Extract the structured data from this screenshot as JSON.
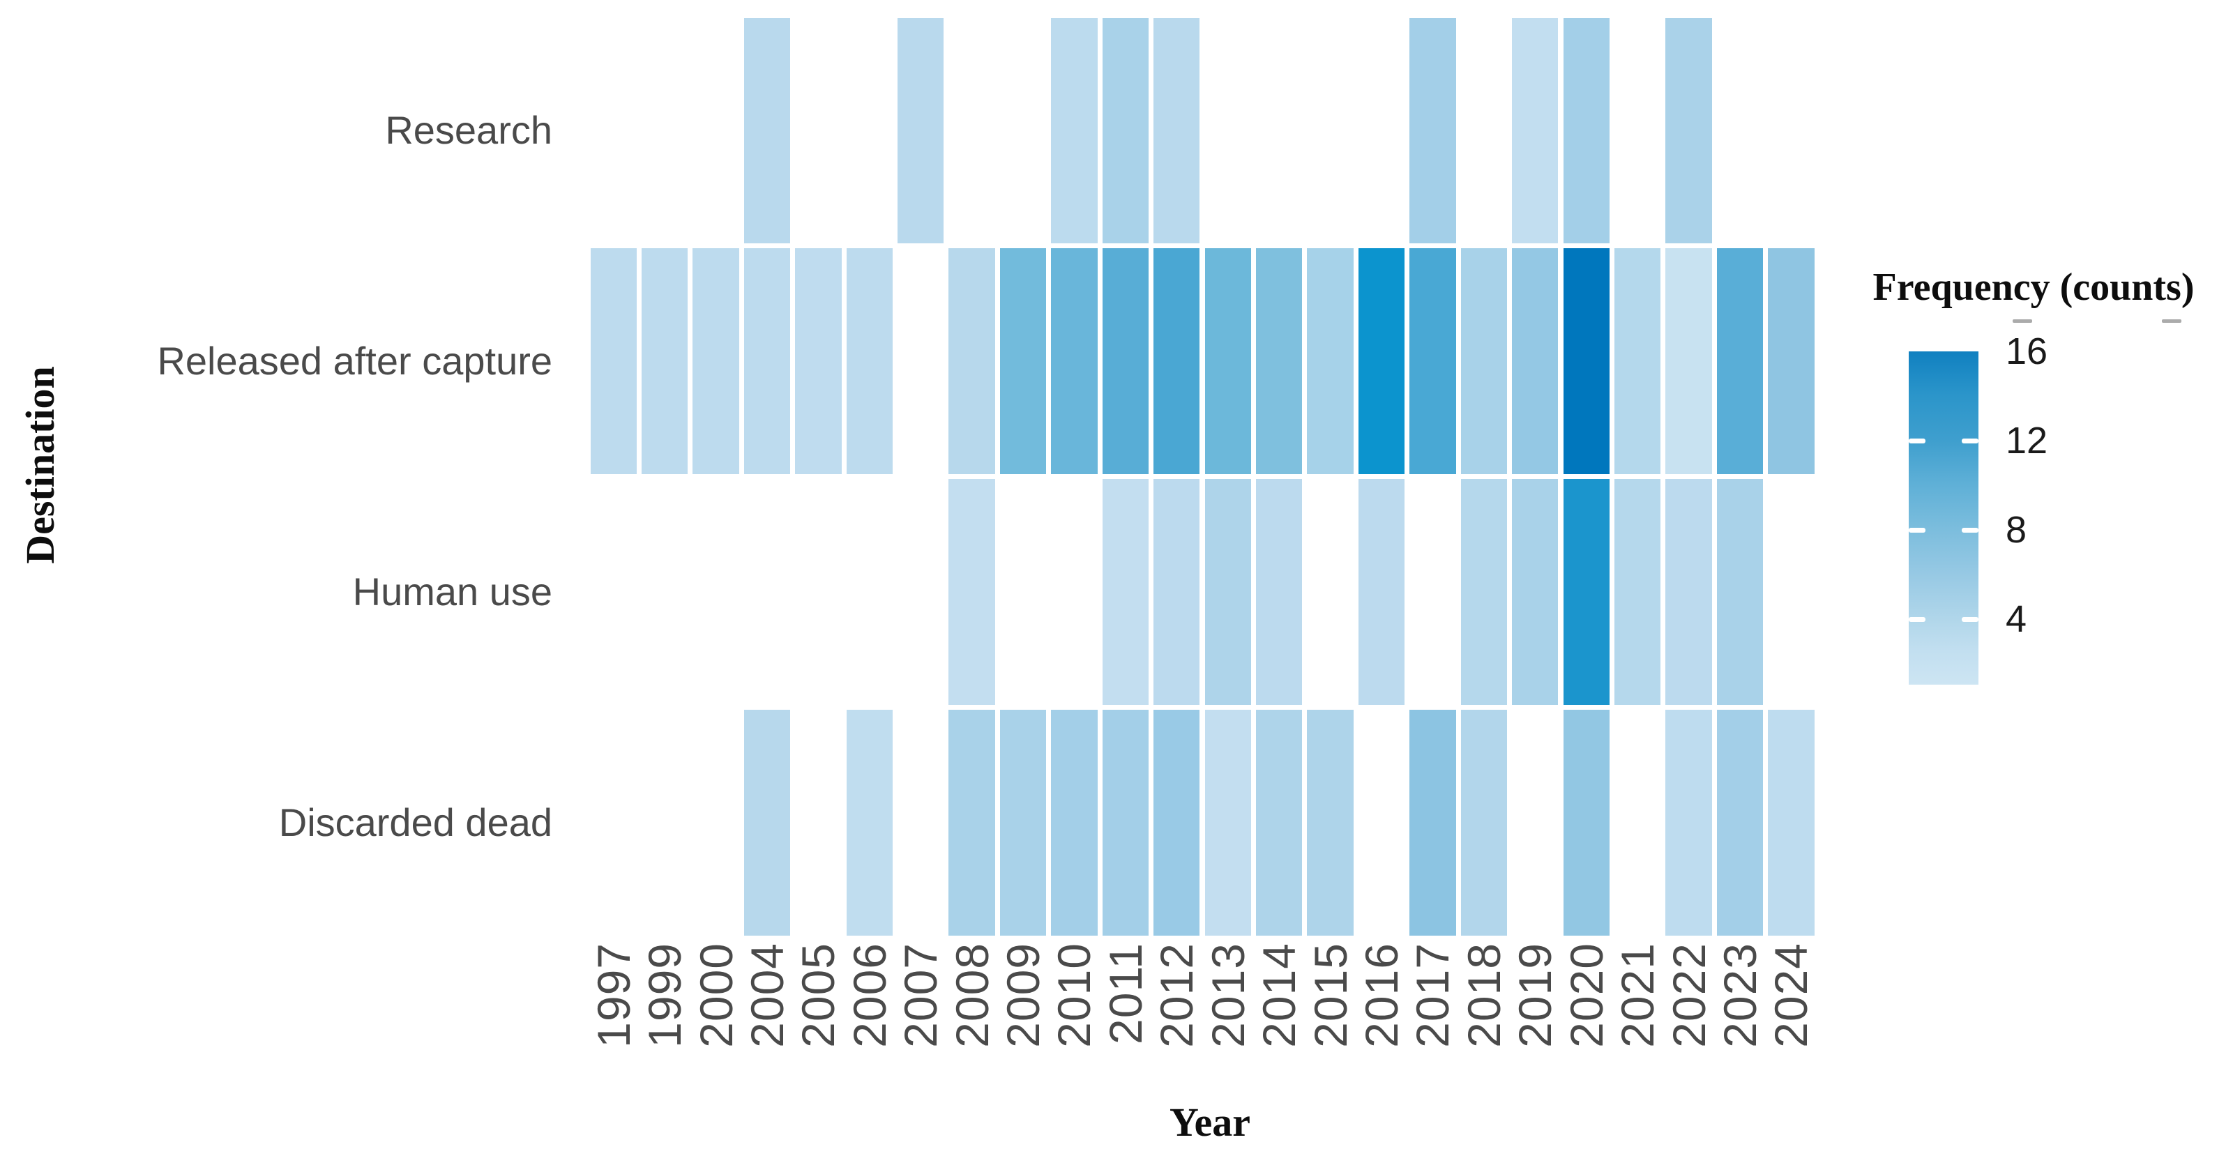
{
  "chart_data": {
    "type": "heatmap",
    "title": "",
    "xlabel": "Year",
    "ylabel": "Destination",
    "legend_title": "Frequency (counts)",
    "legend_ticks": [
      "16",
      "12",
      "8",
      "4"
    ],
    "legend_range": [
      1,
      17
    ],
    "legend_position": "right",
    "grid": "off",
    "colors": {
      "low": "#cde5f3",
      "high": "#0077bd",
      "background": "#ffffff",
      "cell_border": "#ffffff",
      "label_gray": "#4a4a4a"
    },
    "x_categories": [
      "1997",
      "1999",
      "2000",
      "2004",
      "2005",
      "2006",
      "2007",
      "2008",
      "2009",
      "2010",
      "2011",
      "2012",
      "2013",
      "2014",
      "2015",
      "2016",
      "2017",
      "2018",
      "2019",
      "2020",
      "2021",
      "2022",
      "2023",
      "2024"
    ],
    "y_categories": [
      "Research",
      "Released after capture",
      "Human use",
      "Discarded dead"
    ],
    "rows": [
      {
        "label": "Research",
        "cells": [
          {
            "year": "2004",
            "value": 3,
            "color": "#b9d9ed"
          },
          {
            "year": "2007",
            "value": 3,
            "color": "#b9d9ed"
          },
          {
            "year": "2010",
            "value": 3,
            "color": "#bcdbee"
          },
          {
            "year": "2011",
            "value": 5,
            "color": "#a9d2e9"
          },
          {
            "year": "2012",
            "value": 3,
            "color": "#b9d9ed"
          },
          {
            "year": "2017",
            "value": 5,
            "color": "#a3cfe8"
          },
          {
            "year": "2019",
            "value": 2,
            "color": "#c2def0"
          },
          {
            "year": "2020",
            "value": 5,
            "color": "#a3cfe8"
          },
          {
            "year": "2022",
            "value": 5,
            "color": "#aad2e9"
          }
        ]
      },
      {
        "label": "Released after capture",
        "cells": [
          {
            "year": "1997",
            "value": 3,
            "color": "#bddbee"
          },
          {
            "year": "1999",
            "value": 3,
            "color": "#bddbee"
          },
          {
            "year": "2000",
            "value": 3,
            "color": "#bddbee"
          },
          {
            "year": "2004",
            "value": 3,
            "color": "#bddbee"
          },
          {
            "year": "2005",
            "value": 3,
            "color": "#bfdcef"
          },
          {
            "year": "2006",
            "value": 3,
            "color": "#bddbee"
          },
          {
            "year": "2008",
            "value": 4,
            "color": "#b7d8ec"
          },
          {
            "year": "2009",
            "value": 7,
            "color": "#72bbdc"
          },
          {
            "year": "2010",
            "value": 8,
            "color": "#69b6da"
          },
          {
            "year": "2011",
            "value": 9,
            "color": "#58add6"
          },
          {
            "year": "2012",
            "value": 11,
            "color": "#4aa7d3"
          },
          {
            "year": "2013",
            "value": 8,
            "color": "#6cb8da"
          },
          {
            "year": "2014",
            "value": 7,
            "color": "#7fc0de"
          },
          {
            "year": "2015",
            "value": 5,
            "color": "#a6d2e9"
          },
          {
            "year": "2016",
            "value": 14,
            "color": "#0c94ce"
          },
          {
            "year": "2017",
            "value": 11,
            "color": "#49a8d4"
          },
          {
            "year": "2018",
            "value": 5,
            "color": "#a8d2e9"
          },
          {
            "year": "2019",
            "value": 6,
            "color": "#94c8e4"
          },
          {
            "year": "2020",
            "value": 17,
            "color": "#0077bd"
          },
          {
            "year": "2021",
            "value": 4,
            "color": "#b4d8ec"
          },
          {
            "year": "2022",
            "value": 2,
            "color": "#c8e2f1"
          },
          {
            "year": "2023",
            "value": 10,
            "color": "#59aed7"
          },
          {
            "year": "2024",
            "value": 6,
            "color": "#8fc5e2"
          }
        ]
      },
      {
        "label": "Human use",
        "cells": [
          {
            "year": "2008",
            "value": 2,
            "color": "#c3def0"
          },
          {
            "year": "2011",
            "value": 2,
            "color": "#c3def0"
          },
          {
            "year": "2012",
            "value": 3,
            "color": "#bcdaee"
          },
          {
            "year": "2013",
            "value": 5,
            "color": "#aed4ea"
          },
          {
            "year": "2014",
            "value": 3,
            "color": "#bcdaee"
          },
          {
            "year": "2016",
            "value": 3,
            "color": "#bcdaee"
          },
          {
            "year": "2018",
            "value": 4,
            "color": "#b5d8ec"
          },
          {
            "year": "2019",
            "value": 5,
            "color": "#a9d2e9"
          },
          {
            "year": "2020",
            "value": 13,
            "color": "#1b95cd"
          },
          {
            "year": "2021",
            "value": 4,
            "color": "#b5d8ec"
          },
          {
            "year": "2022",
            "value": 3,
            "color": "#bcdaee"
          },
          {
            "year": "2023",
            "value": 5,
            "color": "#a9d2e9"
          }
        ]
      },
      {
        "label": "Discarded dead",
        "cells": [
          {
            "year": "2004",
            "value": 4,
            "color": "#b7d8ec"
          },
          {
            "year": "2006",
            "value": 2,
            "color": "#c0ddef"
          },
          {
            "year": "2008",
            "value": 5,
            "color": "#a9d2e9"
          },
          {
            "year": "2009",
            "value": 5,
            "color": "#a9d2e9"
          },
          {
            "year": "2010",
            "value": 5,
            "color": "#a3cfe8"
          },
          {
            "year": "2011",
            "value": 5,
            "color": "#a3cfe8"
          },
          {
            "year": "2012",
            "value": 6,
            "color": "#99cae6"
          },
          {
            "year": "2013",
            "value": 2,
            "color": "#c3def0"
          },
          {
            "year": "2014",
            "value": 5,
            "color": "#aed4ea"
          },
          {
            "year": "2015",
            "value": 5,
            "color": "#aed4ea"
          },
          {
            "year": "2017",
            "value": 7,
            "color": "#8cc4e2"
          },
          {
            "year": "2018",
            "value": 4,
            "color": "#b2d6eb"
          },
          {
            "year": "2020",
            "value": 6,
            "color": "#92c7e3"
          },
          {
            "year": "2022",
            "value": 3,
            "color": "#bedcef"
          },
          {
            "year": "2023",
            "value": 5,
            "color": "#a3cfe8"
          },
          {
            "year": "2024",
            "value": 3,
            "color": "#bedcef"
          }
        ]
      }
    ]
  }
}
